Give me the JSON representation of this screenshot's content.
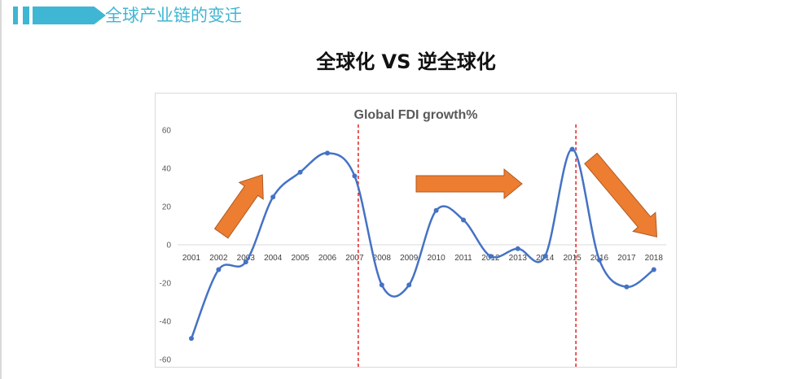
{
  "slide": {
    "title": "全球产业链的变迁",
    "main_title": "全球化 VS 逆全球化"
  },
  "colors": {
    "accent": "#3fb6d3",
    "series": "#4472c4",
    "arrow": "#ed7d31",
    "divider": "#e00000"
  },
  "chart_data": {
    "type": "line",
    "title": "Global FDI growth%",
    "smooth": true,
    "categories": [
      "2001",
      "2002",
      "2003",
      "2004",
      "2005",
      "2006",
      "2007",
      "2008",
      "2009",
      "2010",
      "2011",
      "2012",
      "2013",
      "2014",
      "2015",
      "2016",
      "2017",
      "2018"
    ],
    "series": [
      {
        "values": [
          -49,
          -13,
          -9,
          25,
          38,
          48,
          36,
          -21,
          -21,
          18,
          13,
          -6,
          -2,
          -6,
          50,
          -8,
          -22,
          -13
        ]
      }
    ],
    "ylim": [
      -60,
      60
    ],
    "yticks": [
      60,
      40,
      20,
      0,
      -20,
      -40,
      -60
    ],
    "xlabel": "",
    "ylabel": "",
    "grid": false,
    "legend": "none",
    "annotations": {
      "dividers_after_category": [
        "2007",
        "2015"
      ],
      "arrows": [
        "up",
        "right",
        "down"
      ]
    }
  }
}
